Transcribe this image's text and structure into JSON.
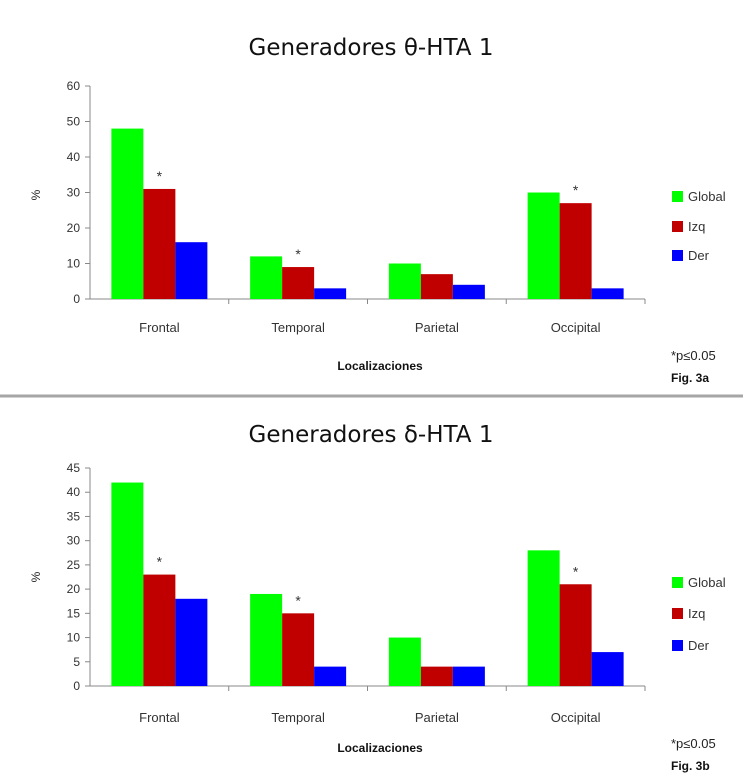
{
  "chart_data": [
    {
      "type": "bar",
      "title": "Generadores θ-HTA 1",
      "xlabel": "Localizaciones",
      "ylabel": "%",
      "ylim": [
        0,
        60
      ],
      "yticks": [
        "0",
        "10",
        "20",
        "30",
        "40",
        "50",
        "60"
      ],
      "categories": [
        "Frontal",
        "Temporal",
        "Parietal",
        "Occipital"
      ],
      "series": [
        {
          "name": "Global",
          "color": "#00ff00",
          "values": [
            48,
            12,
            10,
            30
          ]
        },
        {
          "name": "Izq",
          "color": "#c00000",
          "values": [
            31,
            9,
            7,
            27
          ]
        },
        {
          "name": "Der",
          "color": "#0000ff",
          "values": [
            16,
            3,
            4,
            3
          ]
        }
      ],
      "significance_marker": "*",
      "significant": [
        0,
        1,
        3
      ],
      "legend_position": "right",
      "note": "*p≤0.05",
      "figure_label": "Fig. 3a"
    },
    {
      "type": "bar",
      "title": "Generadores δ-HTA 1",
      "xlabel": "Localizaciones",
      "ylabel": "%",
      "ylim": [
        0,
        45
      ],
      "yticks": [
        "0",
        "5",
        "10",
        "15",
        "20",
        "25",
        "30",
        "35",
        "40",
        "45"
      ],
      "categories": [
        "Frontal",
        "Temporal",
        "Parietal",
        "Occipital"
      ],
      "series": [
        {
          "name": "Global",
          "color": "#00ff00",
          "values": [
            42,
            19,
            10,
            28
          ]
        },
        {
          "name": "Izq",
          "color": "#c00000",
          "values": [
            23,
            15,
            4,
            21
          ]
        },
        {
          "name": "Der",
          "color": "#0000ff",
          "values": [
            18,
            4,
            4,
            7
          ]
        }
      ],
      "significance_marker": "*",
      "significant": [
        0,
        1,
        3
      ],
      "legend_position": "right",
      "note": "*p≤0.05",
      "figure_label": "Fig. 3b"
    }
  ]
}
